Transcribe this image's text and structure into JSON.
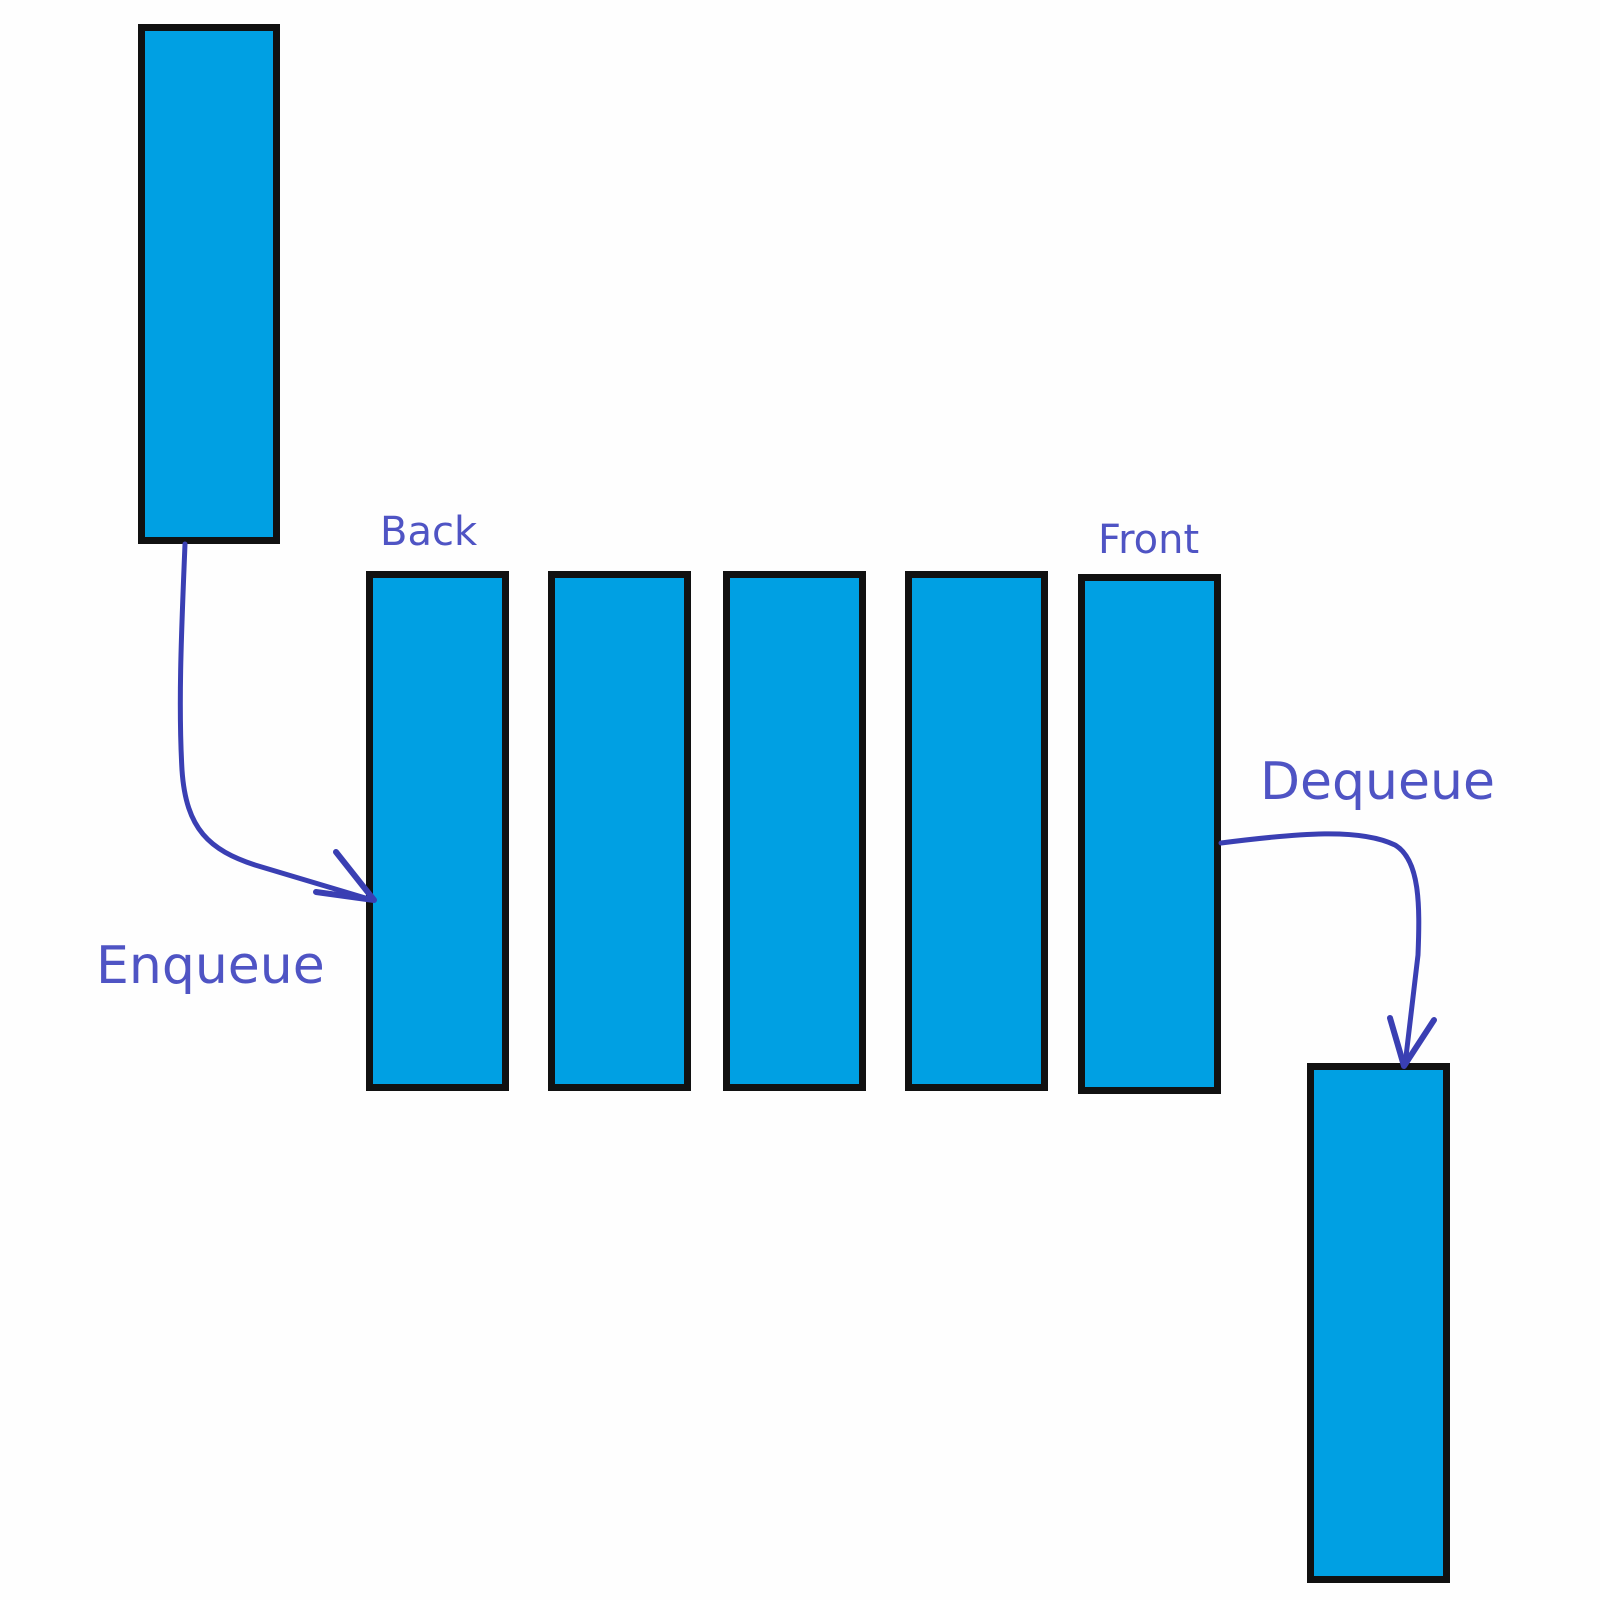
{
  "colors": {
    "block_fill": "#00a0e3",
    "block_border": "#111111",
    "label_text": "#4f54c4",
    "arrow": "#3a3fb3",
    "background": "#fefefe"
  },
  "labels": {
    "back": "Back",
    "front": "Front",
    "enqueue": "Enqueue",
    "dequeue": "Dequeue"
  },
  "queue": {
    "element_count": 5
  }
}
